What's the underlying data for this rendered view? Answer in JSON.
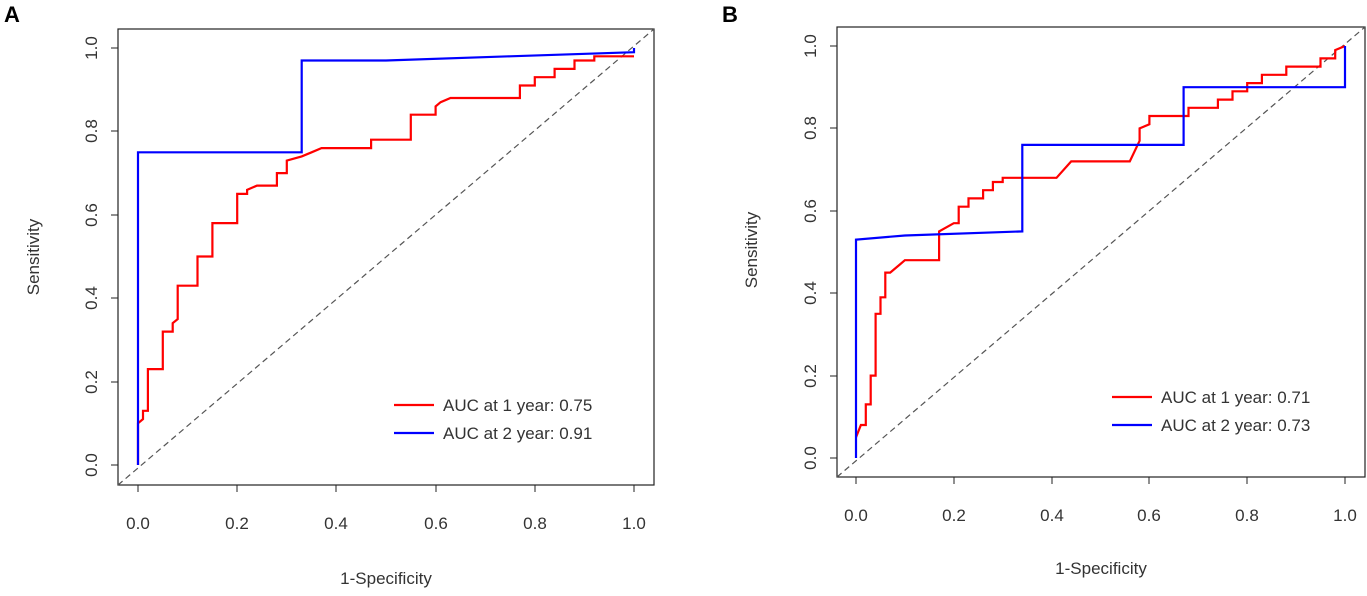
{
  "chart_data": [
    {
      "panel": "A",
      "type": "line",
      "xlabel": "1-Specificity",
      "ylabel": "Sensitivity",
      "xlim": [
        0,
        1
      ],
      "ylim": [
        0,
        1
      ],
      "xticks": [
        "0.0",
        "0.2",
        "0.4",
        "0.6",
        "0.8",
        "1.0"
      ],
      "yticks": [
        "0.0",
        "0.2",
        "0.4",
        "0.6",
        "0.8",
        "1.0"
      ],
      "reference_line": "diagonal dashed",
      "legend_position": "bottom-right",
      "series": [
        {
          "name": "AUC at 1 year: 0.75",
          "color": "#ff0000",
          "points": [
            [
              0,
              0
            ],
            [
              0,
              0.1
            ],
            [
              0.01,
              0.11
            ],
            [
              0.01,
              0.13
            ],
            [
              0.02,
              0.13
            ],
            [
              0.02,
              0.23
            ],
            [
              0.05,
              0.23
            ],
            [
              0.05,
              0.32
            ],
            [
              0.07,
              0.32
            ],
            [
              0.07,
              0.34
            ],
            [
              0.08,
              0.35
            ],
            [
              0.08,
              0.43
            ],
            [
              0.12,
              0.43
            ],
            [
              0.12,
              0.5
            ],
            [
              0.15,
              0.5
            ],
            [
              0.15,
              0.58
            ],
            [
              0.2,
              0.58
            ],
            [
              0.2,
              0.65
            ],
            [
              0.22,
              0.65
            ],
            [
              0.22,
              0.66
            ],
            [
              0.24,
              0.67
            ],
            [
              0.28,
              0.67
            ],
            [
              0.28,
              0.7
            ],
            [
              0.3,
              0.7
            ],
            [
              0.3,
              0.73
            ],
            [
              0.33,
              0.74
            ],
            [
              0.35,
              0.75
            ],
            [
              0.37,
              0.76
            ],
            [
              0.47,
              0.76
            ],
            [
              0.47,
              0.78
            ],
            [
              0.55,
              0.78
            ],
            [
              0.55,
              0.84
            ],
            [
              0.6,
              0.84
            ],
            [
              0.6,
              0.86
            ],
            [
              0.61,
              0.87
            ],
            [
              0.63,
              0.88
            ],
            [
              0.77,
              0.88
            ],
            [
              0.77,
              0.91
            ],
            [
              0.8,
              0.91
            ],
            [
              0.8,
              0.93
            ],
            [
              0.84,
              0.93
            ],
            [
              0.84,
              0.95
            ],
            [
              0.88,
              0.95
            ],
            [
              0.88,
              0.97
            ],
            [
              0.92,
              0.97
            ],
            [
              0.92,
              0.98
            ],
            [
              1,
              0.98
            ]
          ]
        },
        {
          "name": "AUC at 2 year: 0.91",
          "color": "#0000ff",
          "points": [
            [
              0,
              0
            ],
            [
              0,
              0.75
            ],
            [
              0.33,
              0.75
            ],
            [
              0.33,
              0.97
            ],
            [
              0.5,
              0.97
            ],
            [
              0.75,
              0.98
            ],
            [
              1,
              0.99
            ],
            [
              1,
              1
            ]
          ]
        }
      ]
    },
    {
      "panel": "B",
      "type": "line",
      "xlabel": "1-Specificity",
      "ylabel": "Sensitivity",
      "xlim": [
        0,
        1
      ],
      "ylim": [
        0,
        1
      ],
      "xticks": [
        "0.0",
        "0.2",
        "0.4",
        "0.6",
        "0.8",
        "1.0"
      ],
      "yticks": [
        "0.0",
        "0.2",
        "0.4",
        "0.6",
        "0.8",
        "1.0"
      ],
      "reference_line": "diagonal dashed",
      "legend_position": "bottom-right",
      "series": [
        {
          "name": "AUC at 1 year: 0.71",
          "color": "#ff0000",
          "points": [
            [
              0,
              0.05
            ],
            [
              0.01,
              0.08
            ],
            [
              0.02,
              0.08
            ],
            [
              0.02,
              0.13
            ],
            [
              0.03,
              0.13
            ],
            [
              0.03,
              0.2
            ],
            [
              0.04,
              0.2
            ],
            [
              0.04,
              0.35
            ],
            [
              0.05,
              0.35
            ],
            [
              0.05,
              0.39
            ],
            [
              0.06,
              0.39
            ],
            [
              0.06,
              0.45
            ],
            [
              0.07,
              0.45
            ],
            [
              0.08,
              0.46
            ],
            [
              0.09,
              0.47
            ],
            [
              0.1,
              0.48
            ],
            [
              0.17,
              0.48
            ],
            [
              0.17,
              0.55
            ],
            [
              0.2,
              0.57
            ],
            [
              0.21,
              0.57
            ],
            [
              0.21,
              0.61
            ],
            [
              0.23,
              0.61
            ],
            [
              0.23,
              0.63
            ],
            [
              0.26,
              0.63
            ],
            [
              0.26,
              0.65
            ],
            [
              0.28,
              0.65
            ],
            [
              0.28,
              0.67
            ],
            [
              0.3,
              0.67
            ],
            [
              0.3,
              0.68
            ],
            [
              0.41,
              0.68
            ],
            [
              0.44,
              0.72
            ],
            [
              0.56,
              0.72
            ],
            [
              0.58,
              0.77
            ],
            [
              0.58,
              0.8
            ],
            [
              0.6,
              0.81
            ],
            [
              0.6,
              0.83
            ],
            [
              0.68,
              0.83
            ],
            [
              0.68,
              0.85
            ],
            [
              0.74,
              0.85
            ],
            [
              0.74,
              0.87
            ],
            [
              0.77,
              0.87
            ],
            [
              0.77,
              0.89
            ],
            [
              0.8,
              0.89
            ],
            [
              0.8,
              0.91
            ],
            [
              0.83,
              0.91
            ],
            [
              0.83,
              0.93
            ],
            [
              0.88,
              0.93
            ],
            [
              0.88,
              0.95
            ],
            [
              0.95,
              0.95
            ],
            [
              0.95,
              0.97
            ],
            [
              0.98,
              0.97
            ],
            [
              0.98,
              0.99
            ],
            [
              1,
              1
            ]
          ]
        },
        {
          "name": "AUC at 2 year: 0.73",
          "color": "#0000ff",
          "points": [
            [
              0,
              0
            ],
            [
              0,
              0.53
            ],
            [
              0.1,
              0.54
            ],
            [
              0.34,
              0.55
            ],
            [
              0.34,
              0.76
            ],
            [
              0.67,
              0.76
            ],
            [
              0.67,
              0.9
            ],
            [
              1,
              0.9
            ],
            [
              1,
              1
            ]
          ]
        }
      ]
    }
  ]
}
